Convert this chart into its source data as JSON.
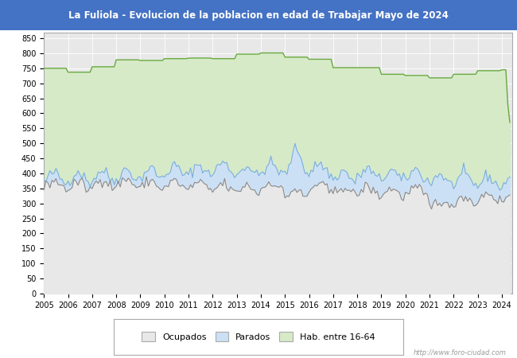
{
  "title": "La Fuliola - Evolucion de la poblacion en edad de Trabajar Mayo de 2024",
  "title_bg_color": "#4472c4",
  "title_text_color": "#ffffff",
  "ylim": [
    0,
    870
  ],
  "yticks": [
    0,
    50,
    100,
    150,
    200,
    250,
    300,
    350,
    400,
    450,
    500,
    550,
    600,
    650,
    700,
    750,
    800,
    850
  ],
  "figure_bg_color": "#ffffff",
  "plot_bg_color": "#e8e8e8",
  "grid_color": "#ffffff",
  "watermark": "http://www.foro-ciudad.com",
  "legend_labels": [
    "Ocupados",
    "Parados",
    "Hab. entre 16-64"
  ],
  "hab_color_fill": "#d6eac8",
  "hab_color_line": "#6aaa40",
  "parados_color_fill": "#cce0f5",
  "parados_color_line": "#7ab0d8",
  "ocupados_color_fill": "#e8e8e8",
  "ocupados_color_line": "#888888"
}
